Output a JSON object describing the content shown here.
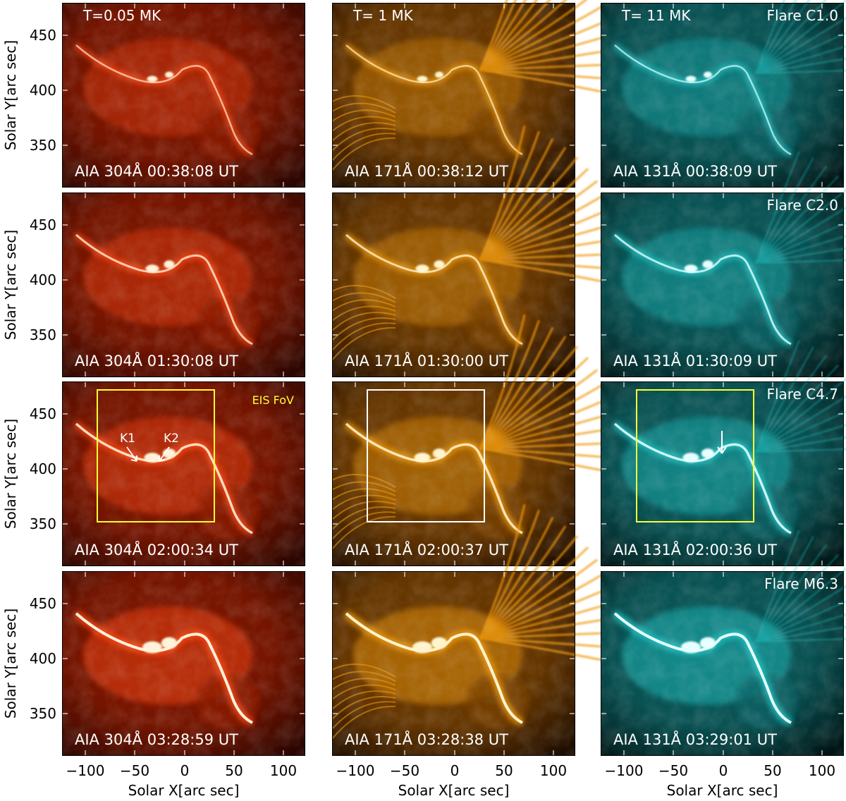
{
  "axes": {
    "y_label": "Solar Y[arc sec]",
    "x_label": "Solar X[arc sec]",
    "y_ticks": [
      "450",
      "400",
      "350"
    ],
    "x_ticks": [
      "−100",
      "−50",
      "0",
      "50",
      "100"
    ]
  },
  "columns": [
    {
      "temperature": "T=0.05 MK",
      "palette": [
        "#2a0500",
        "#8c1a00",
        "#ff4a12",
        "#fff2d8"
      ]
    },
    {
      "temperature": "T= 1 MK",
      "palette": [
        "#1e0d00",
        "#7a4200",
        "#f09a10",
        "#fff4cc"
      ]
    },
    {
      "temperature": "T= 11 MK",
      "palette": [
        "#001414",
        "#0c6466",
        "#22c4c4",
        "#e6ffff"
      ]
    }
  ],
  "rows": [
    {
      "flare": "Flare C1.0",
      "captions": [
        "AIA 304Å 00:38:08 UT",
        "AIA 171Å 00:38:12 UT",
        "AIA 131Å 00:38:09 UT"
      ],
      "intensity": 0.35
    },
    {
      "flare": "Flare C2.0",
      "captions": [
        "AIA 304Å 01:30:08 UT",
        "AIA 171Å 01:30:00 UT",
        "AIA 131Å 01:30:09 UT"
      ],
      "intensity": 0.55
    },
    {
      "flare": "Flare C4.7",
      "captions": [
        "AIA 304Å 02:00:34 UT",
        "AIA 171Å 02:00:37 UT",
        "AIA 131Å 02:00:36 UT"
      ],
      "intensity": 0.75
    },
    {
      "flare": "Flare M6.3",
      "captions": [
        "AIA 304Å 03:28:59 UT",
        "AIA 171Å 03:28:38 UT",
        "AIA 131Å 03:29:01 UT"
      ],
      "intensity": 1.0
    }
  ],
  "annotations": {
    "eis_label": "EIS FoV",
    "eis_color": "#ffff33",
    "k1": "K1",
    "k2": "K2"
  }
}
